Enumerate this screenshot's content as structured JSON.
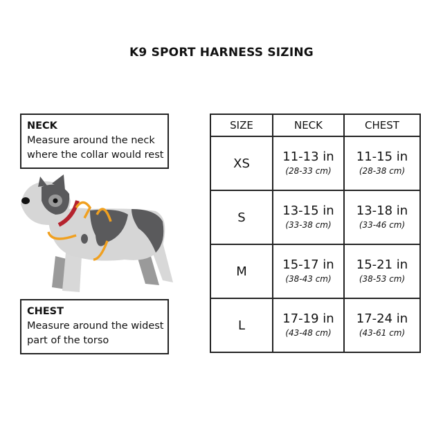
{
  "title": "K9 SPORT HARNESS SIZING",
  "neck_box": {
    "heading": "NECK",
    "text": "Measure around the neck where the collar would rest"
  },
  "chest_box": {
    "heading": "CHEST",
    "text": "Measure around the widest part of the torso"
  },
  "table": {
    "headers": [
      "SIZE",
      "NECK",
      "CHEST"
    ],
    "rows": [
      {
        "size": "XS",
        "neck_in": "11-13 in",
        "neck_cm": "(28-33 cm)",
        "chest_in": "11-15 in",
        "chest_cm": "(28-38 cm)"
      },
      {
        "size": "S",
        "neck_in": "13-15 in",
        "neck_cm": "(33-38 cm)",
        "chest_in": "13-18 in",
        "chest_cm": "(33-46 cm)"
      },
      {
        "size": "M",
        "neck_in": "15-17 in",
        "neck_cm": "(38-43 cm)",
        "chest_in": "15-21 in",
        "chest_cm": "(38-53 cm)"
      },
      {
        "size": "L",
        "neck_in": "17-19 in",
        "neck_cm": "(43-48 cm)",
        "chest_in": "17-24 in",
        "chest_cm": "(43-61 cm)"
      }
    ]
  },
  "colors": {
    "arrow": "#f0a020",
    "collar": "#b5232e",
    "dog_light": "#d4d4d4",
    "dog_dark": "#5a5a5c"
  }
}
